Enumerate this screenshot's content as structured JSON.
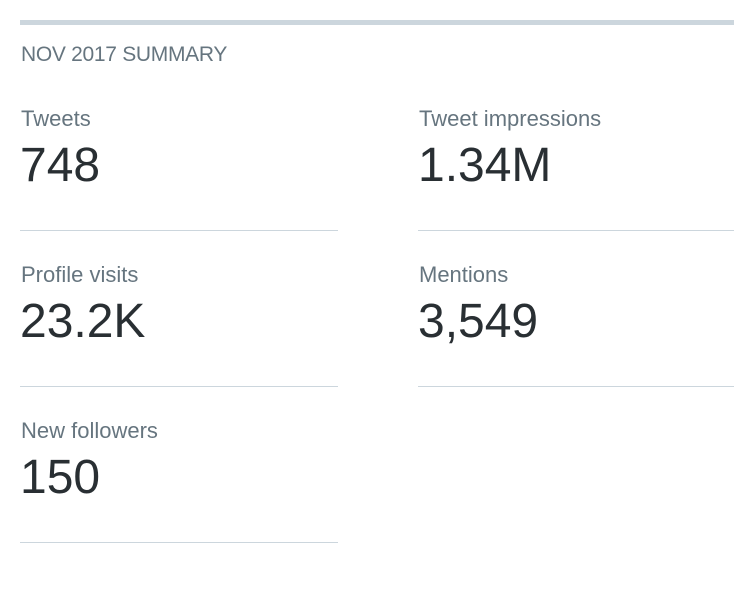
{
  "summary": {
    "title": "NOV 2017 SUMMARY",
    "stats": [
      {
        "label": "Tweets",
        "value": "748"
      },
      {
        "label": "Tweet impressions",
        "value": "1.34M"
      },
      {
        "label": "Profile visits",
        "value": "23.2K"
      },
      {
        "label": "Mentions",
        "value": "3,549"
      },
      {
        "label": "New followers",
        "value": "150"
      }
    ]
  }
}
